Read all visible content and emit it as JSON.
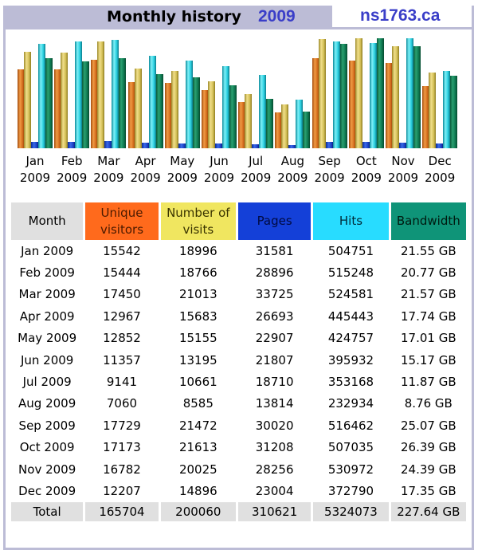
{
  "header": {
    "title": "Monthly history",
    "year": "2009",
    "site": "ns1763.ca"
  },
  "colors": {
    "frame": "#bcbcd6",
    "title_accent": "#3a3ec8",
    "unique_visitors": "#ff6a1c",
    "number_of_visits": "#f0e660",
    "pages": "#1440d8",
    "hits": "#28dcff",
    "bandwidth": "#0f9478",
    "month_total_bg": "#e0e0e0"
  },
  "table": {
    "headers": {
      "month": "Month",
      "unique_visitors": "Unique visitors",
      "visits": "Number of visits",
      "pages": "Pages",
      "hits": "Hits",
      "bandwidth": "Bandwidth"
    },
    "rows": [
      {
        "month": "Jan 2009",
        "uv": "15542",
        "visits": "18996",
        "pages": "31581",
        "hits": "504751",
        "bw": "21.55 GB"
      },
      {
        "month": "Feb 2009",
        "uv": "15444",
        "visits": "18766",
        "pages": "28896",
        "hits": "515248",
        "bw": "20.77 GB"
      },
      {
        "month": "Mar 2009",
        "uv": "17450",
        "visits": "21013",
        "pages": "33725",
        "hits": "524581",
        "bw": "21.57 GB"
      },
      {
        "month": "Apr 2009",
        "uv": "12967",
        "visits": "15683",
        "pages": "26693",
        "hits": "445443",
        "bw": "17.74 GB"
      },
      {
        "month": "May 2009",
        "uv": "12852",
        "visits": "15155",
        "pages": "22907",
        "hits": "424757",
        "bw": "17.01 GB"
      },
      {
        "month": "Jun 2009",
        "uv": "11357",
        "visits": "13195",
        "pages": "21807",
        "hits": "395932",
        "bw": "15.17 GB"
      },
      {
        "month": "Jul 2009",
        "uv": "9141",
        "visits": "10661",
        "pages": "18710",
        "hits": "353168",
        "bw": "11.87 GB"
      },
      {
        "month": "Aug 2009",
        "uv": "7060",
        "visits": "8585",
        "pages": "13814",
        "hits": "232934",
        "bw": "8.76 GB"
      },
      {
        "month": "Sep 2009",
        "uv": "17729",
        "visits": "21472",
        "pages": "30020",
        "hits": "516462",
        "bw": "25.07 GB"
      },
      {
        "month": "Oct 2009",
        "uv": "17173",
        "visits": "21613",
        "pages": "31208",
        "hits": "507035",
        "bw": "26.39 GB"
      },
      {
        "month": "Nov 2009",
        "uv": "16782",
        "visits": "20025",
        "pages": "28256",
        "hits": "530972",
        "bw": "24.39 GB"
      },
      {
        "month": "Dec 2009",
        "uv": "12207",
        "visits": "14896",
        "pages": "23004",
        "hits": "372790",
        "bw": "17.35 GB"
      }
    ],
    "total": {
      "label": "Total",
      "uv": "165704",
      "visits": "200060",
      "pages": "310621",
      "hits": "5324073",
      "bw": "227.64 GB"
    }
  },
  "chart_data": {
    "type": "bar",
    "title": "Monthly history 2009",
    "xlabel": "",
    "ylabel": "",
    "grid": false,
    "legend_position": "table-header",
    "categories": [
      "Jan 2009",
      "Feb 2009",
      "Mar 2009",
      "Apr 2009",
      "May 2009",
      "Jun 2009",
      "Jul 2009",
      "Aug 2009",
      "Sep 2009",
      "Oct 2009",
      "Nov 2009",
      "Dec 2009"
    ],
    "category_labels": [
      [
        "Jan",
        "2009"
      ],
      [
        "Feb",
        "2009"
      ],
      [
        "Mar",
        "2009"
      ],
      [
        "Apr",
        "2009"
      ],
      [
        "May",
        "2009"
      ],
      [
        "Jun",
        "2009"
      ],
      [
        "Jul",
        "2009"
      ],
      [
        "Aug",
        "2009"
      ],
      [
        "Sep",
        "2009"
      ],
      [
        "Oct",
        "2009"
      ],
      [
        "Nov",
        "2009"
      ],
      [
        "Dec",
        "2009"
      ]
    ],
    "series": [
      {
        "name": "Unique visitors",
        "key": "uv",
        "scale_group": "visits",
        "values": [
          15542,
          15444,
          17450,
          12967,
          12852,
          11357,
          9141,
          7060,
          17729,
          17173,
          16782,
          12207
        ]
      },
      {
        "name": "Number of visits",
        "key": "vi",
        "scale_group": "visits",
        "values": [
          18996,
          18766,
          21013,
          15683,
          15155,
          13195,
          10661,
          8585,
          21472,
          21613,
          20025,
          14896
        ]
      },
      {
        "name": "Pages",
        "key": "pg",
        "scale_group": "hits",
        "values": [
          31581,
          28896,
          33725,
          26693,
          22907,
          21807,
          18710,
          13814,
          30020,
          31208,
          28256,
          23004
        ]
      },
      {
        "name": "Hits",
        "key": "hi",
        "scale_group": "hits",
        "values": [
          504751,
          515248,
          524581,
          445443,
          424757,
          395932,
          353168,
          232934,
          516462,
          507035,
          530972,
          372790
        ]
      },
      {
        "name": "Bandwidth (GB)",
        "key": "bw",
        "scale_group": "bandwidth",
        "values": [
          21.55,
          20.77,
          21.57,
          17.74,
          17.01,
          15.17,
          11.87,
          8.76,
          25.07,
          26.39,
          24.39,
          17.35
        ]
      }
    ]
  }
}
